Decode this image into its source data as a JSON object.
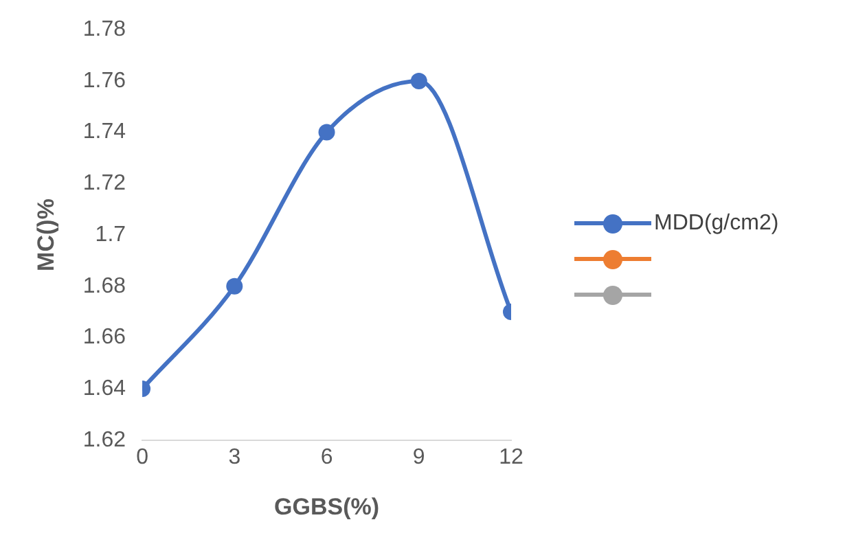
{
  "chart_data": {
    "type": "line",
    "xlabel": "GGBS(%)",
    "ylabel": "MC()%",
    "x": [
      0,
      3,
      6,
      9,
      12
    ],
    "xlim": [
      0,
      12
    ],
    "xticks": [
      0,
      3,
      6,
      9,
      12
    ],
    "ylim": [
      1.62,
      1.78
    ],
    "yticks": [
      1.62,
      1.64,
      1.66,
      1.68,
      1.7,
      1.72,
      1.74,
      1.76,
      1.78
    ],
    "series": [
      {
        "name": "MDD(g/cm2)",
        "color": "#4472c4",
        "values": [
          1.64,
          1.68,
          1.74,
          1.76,
          1.67
        ]
      },
      {
        "color": "#ed7d31",
        "values": [
          null,
          null,
          null,
          null,
          null
        ]
      },
      {
        "color": "#a5a5a5",
        "values": [
          null,
          null,
          null,
          null,
          null
        ]
      }
    ],
    "marker": "circle",
    "grid": false,
    "legend": "right"
  }
}
